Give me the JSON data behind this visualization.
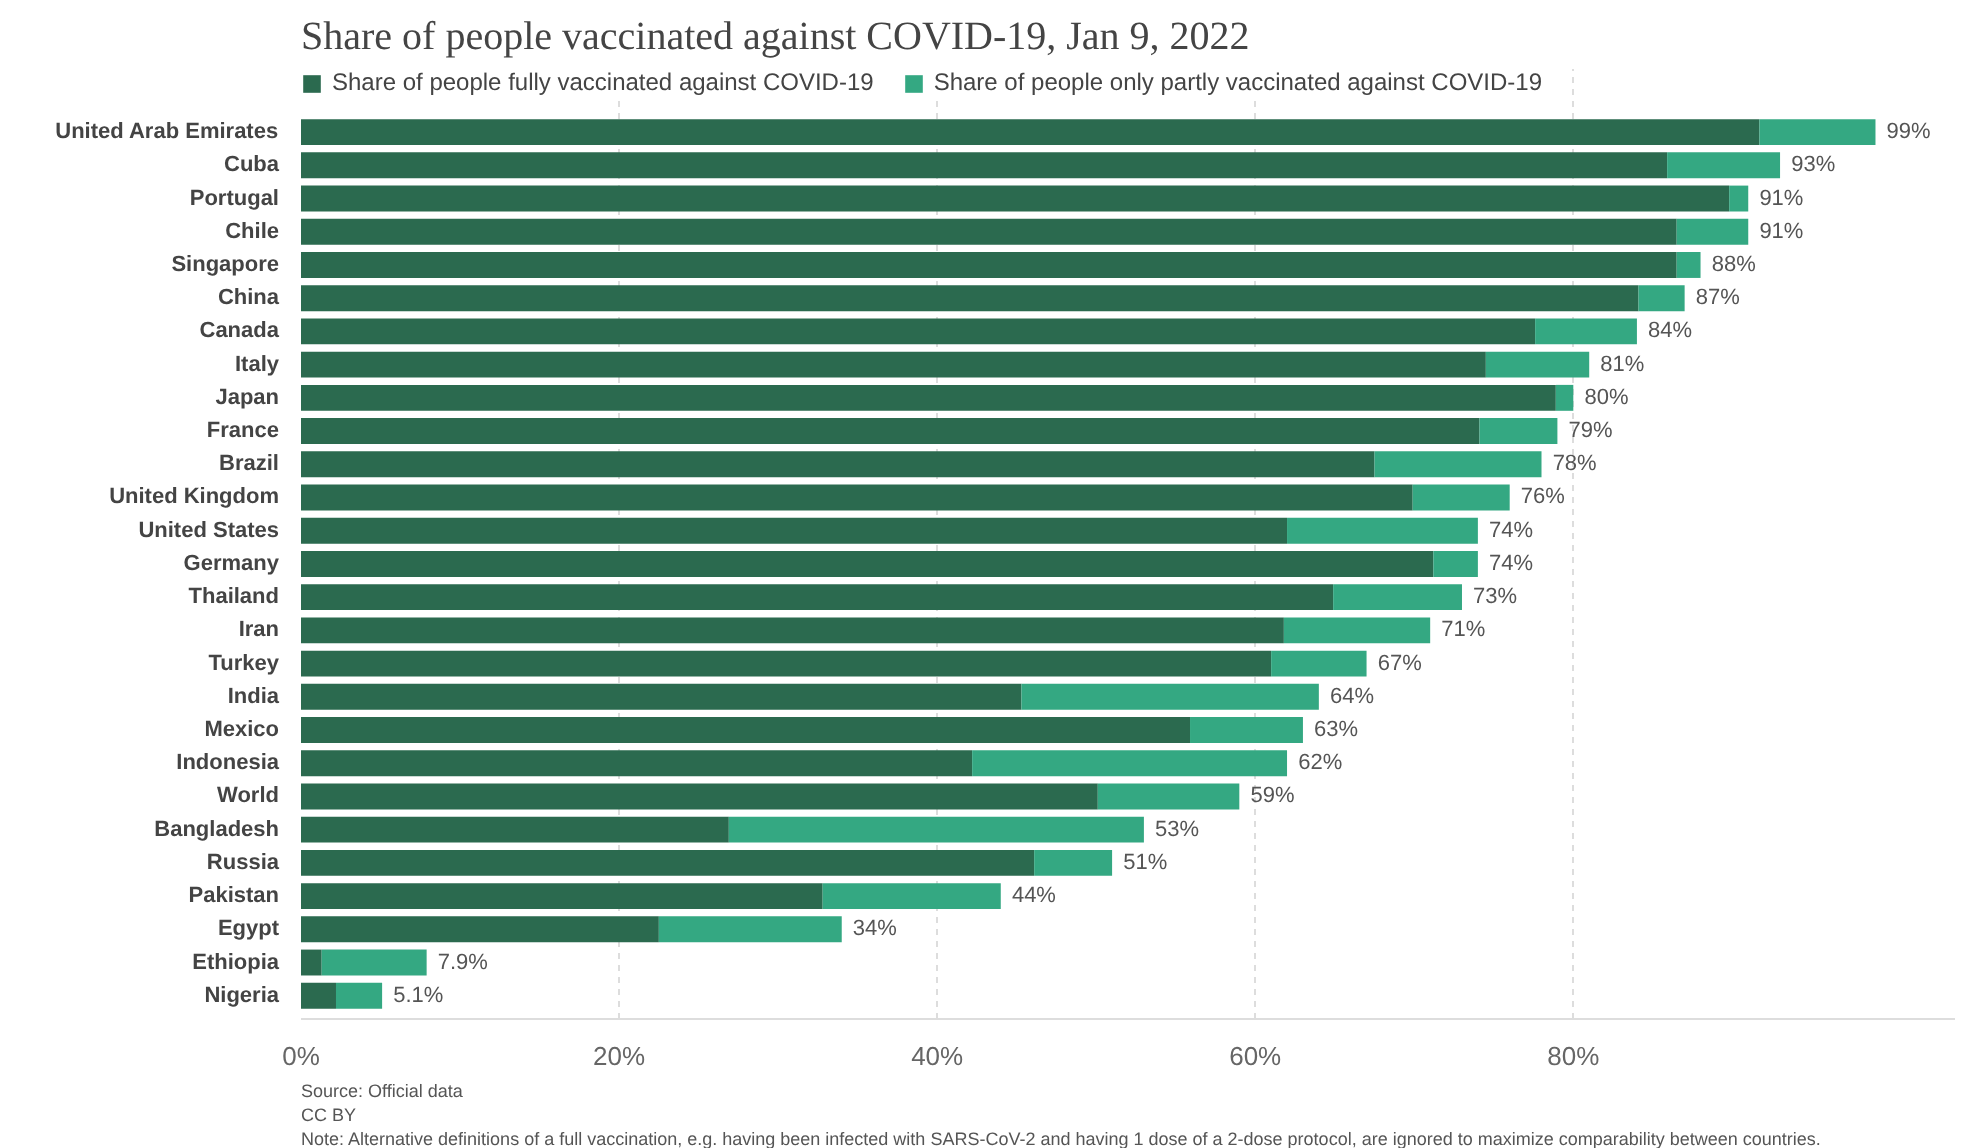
{
  "chart_data": {
    "type": "bar",
    "orientation": "horizontal",
    "stacked": true,
    "title": "Share of people vaccinated against COVID-19, Jan 9, 2022",
    "categories": [
      "United Arab Emirates",
      "Cuba",
      "Portugal",
      "Chile",
      "Singapore",
      "China",
      "Canada",
      "Italy",
      "Japan",
      "France",
      "Brazil",
      "United Kingdom",
      "United States",
      "Germany",
      "Thailand",
      "Iran",
      "Turkey",
      "India",
      "Mexico",
      "Indonesia",
      "World",
      "Bangladesh",
      "Russia",
      "Pakistan",
      "Egypt",
      "Ethiopia",
      "Nigeria"
    ],
    "series": [
      {
        "name": "Share of people fully vaccinated against COVID-19",
        "color": "#2b6a4f",
        "values": [
          91.7,
          85.9,
          89.8,
          86.5,
          86.5,
          84.1,
          77.6,
          74.5,
          78.9,
          74.1,
          67.5,
          69.9,
          62.0,
          71.2,
          64.9,
          61.8,
          61.0,
          45.3,
          55.9,
          42.2,
          50.1,
          26.9,
          46.1,
          32.8,
          22.5,
          1.3,
          2.2
        ]
      },
      {
        "name": "Share of people only partly vaccinated against COVID-19",
        "color": "#34a882",
        "values": [
          7.3,
          7.1,
          1.2,
          4.5,
          1.5,
          2.9,
          6.4,
          6.5,
          1.1,
          4.9,
          10.5,
          6.1,
          12.0,
          2.8,
          8.1,
          9.2,
          6.0,
          18.7,
          7.1,
          19.8,
          8.9,
          26.1,
          4.9,
          11.2,
          11.5,
          6.6,
          2.9
        ]
      }
    ],
    "totals": [
      "99%",
      "93%",
      "91%",
      "91%",
      "88%",
      "87%",
      "84%",
      "81%",
      "80%",
      "79%",
      "78%",
      "76%",
      "74%",
      "74%",
      "73%",
      "71%",
      "67%",
      "64%",
      "63%",
      "62%",
      "59%",
      "53%",
      "51%",
      "44%",
      "34%",
      "7.9%",
      "5.1%"
    ],
    "xlim": [
      0,
      104
    ],
    "xticks": [
      {
        "value": 0,
        "label": "0%"
      },
      {
        "value": 20,
        "label": "20%"
      },
      {
        "value": 40,
        "label": "40%"
      },
      {
        "value": 60,
        "label": "60%"
      },
      {
        "value": 80,
        "label": "80%"
      }
    ],
    "grid": "x",
    "legend": "top left",
    "annotations": [
      "Source: Official data",
      "CC BY",
      "Note: Alternative definitions of a full vaccination, e.g. having been infected with SARS-CoV-2 and having 1 dose of a 2-dose protocol, are ignored to maximize comparability between countries."
    ]
  }
}
